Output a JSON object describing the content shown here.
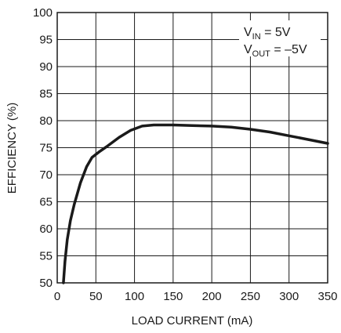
{
  "chart_data": {
    "type": "line",
    "title": "",
    "xlabel": "LOAD CURRENT (mA)",
    "ylabel": "EFFICIENCY (%)",
    "xlim": [
      0,
      350
    ],
    "ylim": [
      50,
      100
    ],
    "xticks": [
      0,
      50,
      100,
      150,
      200,
      250,
      300,
      350
    ],
    "yticks": [
      50,
      55,
      60,
      65,
      70,
      75,
      80,
      85,
      90,
      95,
      100
    ],
    "grid": true,
    "annotation": {
      "vin_main": "V",
      "vin_sub": "IN",
      "vin_rest": " = 5V",
      "vout_main": "V",
      "vout_sub": "OUT",
      "vout_rest": " = –5V"
    },
    "series": [
      {
        "color": "#1a1a1a",
        "x": [
          8,
          10,
          13,
          17,
          22,
          30,
          38,
          45,
          55,
          65,
          80,
          95,
          110,
          125,
          150,
          175,
          200,
          225,
          250,
          275,
          300,
          325,
          350
        ],
        "y": [
          50,
          54,
          58,
          61.5,
          64.5,
          68.5,
          71.5,
          73.2,
          74.3,
          75.3,
          76.9,
          78.2,
          79.0,
          79.2,
          79.2,
          79.1,
          79.0,
          78.8,
          78.4,
          77.9,
          77.2,
          76.5,
          75.8
        ]
      }
    ]
  }
}
